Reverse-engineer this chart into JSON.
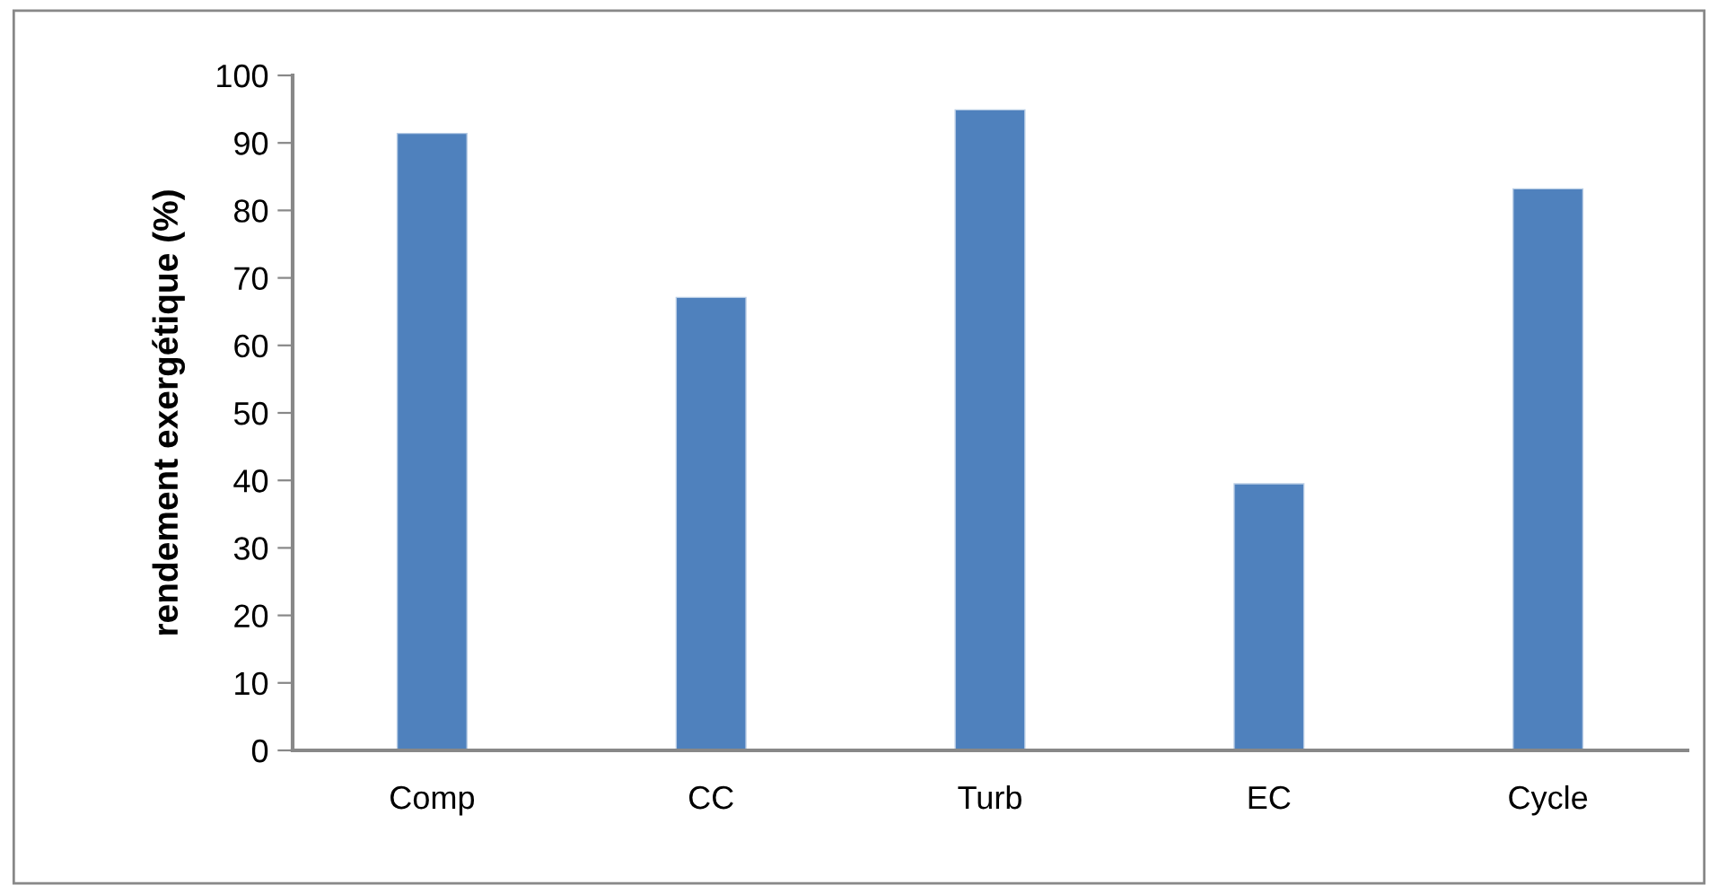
{
  "chart_data": {
    "type": "bar",
    "ylabel": "rendement exergétique (%)",
    "categories": [
      "Comp",
      "CC",
      "Turb",
      "EC",
      "Cycle"
    ],
    "values": [
      91.4,
      67.1,
      94.9,
      39.5,
      83.2
    ],
    "color": "#4f81bd",
    "ylim": [
      0,
      100
    ],
    "yticks": [
      0,
      10,
      20,
      30,
      40,
      50,
      60,
      70,
      80,
      90,
      100
    ],
    "grid": false
  }
}
